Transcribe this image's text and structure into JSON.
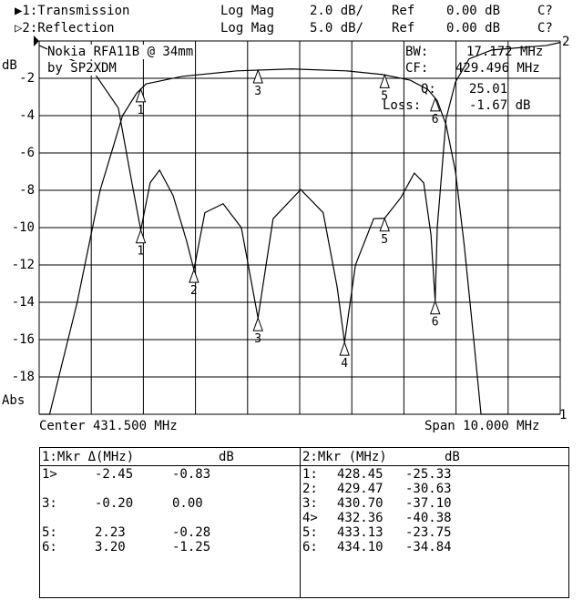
{
  "header": {
    "channels": [
      {
        "label": "▶1:Transmission",
        "format": "Log Mag",
        "scale": "2.0 dB/",
        "ref_label": "Ref",
        "ref": "0.00 dB",
        "cal": "C?"
      },
      {
        "label": "▷2:Reflection",
        "format": "Log Mag",
        "scale": "5.0 dB/",
        "ref_label": "Ref",
        "ref": "0.00 dB",
        "cal": "C?"
      }
    ]
  },
  "annotations": {
    "title1": "Nokia RFA11B @ 34mm",
    "title2": "by SP2XDM",
    "bw_label": "BW:",
    "bw": "17.172 MHz",
    "cf_label": "CF:",
    "cf": "429.496 MHz",
    "q_label": "Q:",
    "q": "25.01",
    "loss_label": "Loss:",
    "loss": "-1.67 dB",
    "trace2_tag": "2",
    "trace1_tag": "1"
  },
  "chart_data": {
    "type": "line",
    "ylabel": "dB",
    "ylabel_bottom": "Abs",
    "ytick_labels": [
      "-2",
      "-4",
      "-6",
      "-8",
      "-10",
      "-12",
      "-14",
      "-16",
      "-18"
    ],
    "x_center": "Center 431.500 MHz",
    "x_span": "Span 10.000 MHz",
    "xlim": [
      426.5,
      436.5
    ],
    "grid": true,
    "series": [
      {
        "name": "Transmission",
        "scale_db_per_div": 2,
        "ylim": [
          -20,
          0
        ],
        "x": [
          426.5,
          426.7,
          427.23,
          427.67,
          428.1,
          428.37,
          428.55,
          429.24,
          430.3,
          431.34,
          432.39,
          433.09,
          433.62,
          433.96,
          434.14,
          434.31,
          434.49,
          434.66,
          434.84,
          434.98,
          436.5
        ],
        "y": [
          -20,
          -20,
          -14,
          -8,
          -4,
          -2.8,
          -2.3,
          -1.9,
          -1.6,
          -1.5,
          -1.6,
          -1.8,
          -2.1,
          -2.6,
          -3.2,
          -4.5,
          -7,
          -11,
          -16,
          -20,
          -20
        ]
      },
      {
        "name": "Reflection",
        "scale_db_per_div": 5,
        "ylim": [
          -50,
          0
        ],
        "x": [
          426.5,
          427.5,
          428.02,
          428.28,
          428.45,
          428.63,
          428.81,
          429.07,
          429.33,
          429.47,
          429.68,
          430.03,
          430.38,
          430.7,
          430.99,
          431.52,
          431.95,
          432.22,
          432.36,
          432.57,
          432.92,
          433.13,
          433.44,
          433.7,
          433.88,
          434.02,
          434.1,
          434.14,
          434.31,
          434.49,
          434.75,
          435.19,
          436.24,
          436.5
        ],
        "y": [
          -0.6,
          -3.7,
          -9,
          -19,
          -25.33,
          -19,
          -17.3,
          -20.7,
          -26.8,
          -30.63,
          -23,
          -21.8,
          -25,
          -37.1,
          -23.8,
          -19.9,
          -23,
          -33,
          -40.38,
          -30,
          -23.8,
          -23.75,
          -21,
          -17.7,
          -19,
          -26,
          -34.84,
          -25,
          -10.4,
          -5.5,
          -2.4,
          -1.2,
          -0.6,
          -0.2
        ]
      }
    ],
    "markers": [
      {
        "id": "1",
        "freq": 428.45
      },
      {
        "id": "2",
        "freq": 429.47
      },
      {
        "id": "3",
        "freq": 430.7
      },
      {
        "id": "4",
        "freq": 432.36
      },
      {
        "id": "5",
        "freq": 433.13
      },
      {
        "id": "6",
        "freq": 434.1
      }
    ]
  },
  "table": {
    "left": {
      "header": "1:Mkr Δ(MHz)",
      "unit": "dB",
      "rows": [
        {
          "id": "1>",
          "freq": "-2.45",
          "db": "-0.83"
        },
        {
          "id": "",
          "freq": "",
          "db": ""
        },
        {
          "id": "3:",
          "freq": "-0.20",
          "db": "0.00"
        },
        {
          "id": "",
          "freq": "",
          "db": ""
        },
        {
          "id": "5:",
          "freq": "2.23",
          "db": "-0.28"
        },
        {
          "id": "6:",
          "freq": "3.20",
          "db": "-1.25"
        }
      ]
    },
    "right": {
      "header": "2:Mkr (MHz)",
      "unit": "dB",
      "rows": [
        {
          "id": "1:",
          "freq": "428.45",
          "db": "-25.33"
        },
        {
          "id": "2:",
          "freq": "429.47",
          "db": "-30.63"
        },
        {
          "id": "3:",
          "freq": "430.70",
          "db": "-37.10"
        },
        {
          "id": "4>",
          "freq": "432.36",
          "db": "-40.38"
        },
        {
          "id": "5:",
          "freq": "433.13",
          "db": "-23.75"
        },
        {
          "id": "6:",
          "freq": "434.10",
          "db": "-34.84"
        }
      ]
    }
  }
}
